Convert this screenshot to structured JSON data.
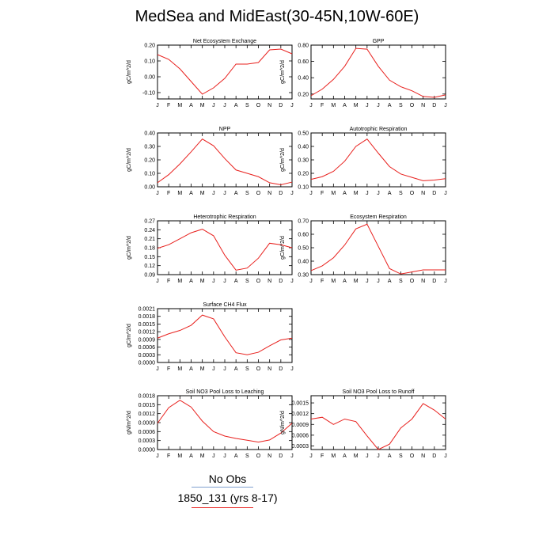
{
  "page": {
    "title": "MedSea and MidEast(30-45N,10W-60E)",
    "legend": {
      "header": "No Obs",
      "item": "1850_131 (yrs 8-17)"
    }
  },
  "style": {
    "line_color": "#e8201d",
    "axis_color": "#000000",
    "legend_line_color": "#7f9fd0"
  },
  "chart_data": [
    {
      "type": "line",
      "title": "Net Ecosystem Exchange",
      "ylabel": "gC/m^2/d",
      "categories": [
        "J",
        "F",
        "M",
        "A",
        "M",
        "J",
        "J",
        "A",
        "S",
        "O",
        "N",
        "D",
        "J"
      ],
      "ylim": [
        -0.14,
        0.2
      ],
      "yticks": [
        "-0.10",
        "0.00",
        "0.10",
        "0.20"
      ],
      "ytick_values": [
        -0.1,
        0.0,
        0.1,
        0.2
      ],
      "series": [
        {
          "values": [
            0.14,
            0.11,
            0.05,
            -0.03,
            -0.11,
            -0.07,
            -0.01,
            0.08,
            0.08,
            0.09,
            0.17,
            0.175,
            0.145
          ]
        }
      ]
    },
    {
      "type": "line",
      "title": "GPP",
      "ylabel": "gC/m^2/d",
      "categories": [
        "J",
        "F",
        "M",
        "A",
        "M",
        "J",
        "J",
        "A",
        "S",
        "O",
        "N",
        "D",
        "J"
      ],
      "ylim": [
        0.14,
        0.8
      ],
      "yticks": [
        "0.20",
        "0.40",
        "0.60",
        "0.80"
      ],
      "ytick_values": [
        0.2,
        0.4,
        0.6,
        0.8
      ],
      "series": [
        {
          "values": [
            0.18,
            0.26,
            0.38,
            0.54,
            0.76,
            0.75,
            0.54,
            0.37,
            0.29,
            0.24,
            0.17,
            0.16,
            0.19
          ]
        }
      ]
    },
    {
      "type": "line",
      "title": "NPP",
      "ylabel": "gC/m^2/d",
      "categories": [
        "J",
        "F",
        "M",
        "A",
        "M",
        "J",
        "J",
        "A",
        "S",
        "O",
        "N",
        "D",
        "J"
      ],
      "ylim": [
        0.0,
        0.4
      ],
      "yticks": [
        "0.00",
        "0.10",
        "0.20",
        "0.30",
        "0.40"
      ],
      "ytick_values": [
        0.0,
        0.1,
        0.2,
        0.3,
        0.4
      ],
      "series": [
        {
          "values": [
            0.03,
            0.09,
            0.17,
            0.26,
            0.355,
            0.305,
            0.21,
            0.125,
            0.1,
            0.075,
            0.03,
            0.015,
            0.035
          ]
        }
      ]
    },
    {
      "type": "line",
      "title": "Autotrophic Respiration",
      "ylabel": "gC/m^2/d",
      "categories": [
        "J",
        "F",
        "M",
        "A",
        "M",
        "J",
        "J",
        "A",
        "S",
        "O",
        "N",
        "D",
        "J"
      ],
      "ylim": [
        0.1,
        0.5
      ],
      "yticks": [
        "0.10",
        "0.20",
        "0.30",
        "0.40",
        "0.50"
      ],
      "ytick_values": [
        0.1,
        0.2,
        0.3,
        0.4,
        0.5
      ],
      "series": [
        {
          "values": [
            0.155,
            0.175,
            0.215,
            0.29,
            0.4,
            0.455,
            0.35,
            0.25,
            0.195,
            0.17,
            0.145,
            0.15,
            0.16
          ]
        }
      ]
    },
    {
      "type": "line",
      "title": "Heterotrophic Respiration",
      "ylabel": "gC/m^2/d",
      "categories": [
        "J",
        "F",
        "M",
        "A",
        "M",
        "J",
        "J",
        "A",
        "S",
        "O",
        "N",
        "D",
        "J"
      ],
      "ylim": [
        0.09,
        0.27
      ],
      "yticks": [
        "0.09",
        "0.12",
        "0.15",
        "0.18",
        "0.21",
        "0.24",
        "0.27"
      ],
      "ytick_values": [
        0.09,
        0.12,
        0.15,
        0.18,
        0.21,
        0.24,
        0.27
      ],
      "series": [
        {
          "values": [
            0.178,
            0.19,
            0.21,
            0.23,
            0.242,
            0.22,
            0.155,
            0.105,
            0.112,
            0.145,
            0.195,
            0.19,
            0.18
          ]
        }
      ]
    },
    {
      "type": "line",
      "title": "Ecosystem Respiration",
      "ylabel": "gC/m^2/d",
      "categories": [
        "J",
        "F",
        "M",
        "A",
        "M",
        "J",
        "J",
        "A",
        "S",
        "O",
        "N",
        "D",
        "J"
      ],
      "ylim": [
        0.3,
        0.7
      ],
      "yticks": [
        "0.30",
        "0.40",
        "0.50",
        "0.60",
        "0.70"
      ],
      "ytick_values": [
        0.3,
        0.4,
        0.5,
        0.6,
        0.7
      ],
      "series": [
        {
          "values": [
            0.33,
            0.365,
            0.425,
            0.52,
            0.64,
            0.675,
            0.51,
            0.345,
            0.305,
            0.32,
            0.335,
            0.335,
            0.335
          ]
        }
      ]
    },
    {
      "type": "line",
      "title": "Surface CH4 Flux",
      "ylabel": "gC/m^2/d",
      "categories": [
        "J",
        "F",
        "M",
        "A",
        "M",
        "J",
        "J",
        "A",
        "S",
        "O",
        "N",
        "D",
        "J"
      ],
      "ylim": [
        0.0,
        0.0021
      ],
      "yticks": [
        "0.0000",
        "0.0003",
        "0.0006",
        "0.0009",
        "0.0012",
        "0.0015",
        "0.0018",
        "0.0021"
      ],
      "ytick_values": [
        0.0,
        0.0003,
        0.0006,
        0.0009,
        0.0012,
        0.0015,
        0.0018,
        0.0021
      ],
      "series": [
        {
          "values": [
            0.00095,
            0.00112,
            0.00125,
            0.00145,
            0.00185,
            0.0017,
            0.001,
            0.00038,
            0.0003,
            0.0004,
            0.00065,
            0.00088,
            0.00095
          ]
        }
      ]
    },
    {
      "type": "line",
      "title": "Soil NO3 Pool Loss to Leaching",
      "ylabel": "gN/m^2/d",
      "categories": [
        "J",
        "F",
        "M",
        "A",
        "M",
        "J",
        "J",
        "A",
        "S",
        "O",
        "N",
        "D",
        "J"
      ],
      "ylim": [
        0.0,
        0.0018
      ],
      "yticks": [
        "0.0000",
        "0.0003",
        "0.0006",
        "0.0009",
        "0.0012",
        "0.0015",
        "0.0018"
      ],
      "ytick_values": [
        0.0,
        0.0003,
        0.0006,
        0.0009,
        0.0012,
        0.0015,
        0.0018
      ],
      "series": [
        {
          "values": [
            0.00088,
            0.0014,
            0.00165,
            0.00142,
            0.00095,
            0.0006,
            0.00045,
            0.00037,
            0.00031,
            0.00025,
            0.00032,
            0.00055,
            0.00088
          ]
        }
      ]
    },
    {
      "type": "line",
      "title": "Soil NO3 Pool Loss to Runoff",
      "ylabel": "gN/m^2/d",
      "categories": [
        "J",
        "F",
        "M",
        "A",
        "M",
        "J",
        "J",
        "A",
        "S",
        "O",
        "N",
        "D",
        "J"
      ],
      "ylim": [
        0.0002,
        0.0017
      ],
      "yticks": [
        "0.0003",
        "0.0006",
        "0.0009",
        "0.0012",
        "0.0015"
      ],
      "ytick_values": [
        0.0003,
        0.0006,
        0.0009,
        0.0012,
        0.0015
      ],
      "series": [
        {
          "values": [
            0.00105,
            0.0011,
            0.0009,
            0.00105,
            0.00098,
            0.00058,
            0.0002,
            0.00035,
            0.0008,
            0.00105,
            0.00148,
            0.0013,
            0.00105
          ]
        }
      ]
    }
  ]
}
